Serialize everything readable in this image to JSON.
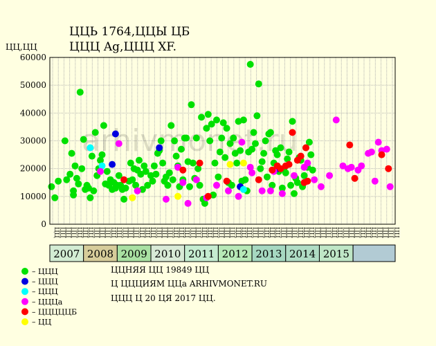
{
  "header": {
    "title": "ЦЦЬ 1764,ЦЦЫ ЦБ",
    "subtitle": "ЦЦЦ Ag,ЦЦЦ XF.",
    "ylabel": "ЦЦ,ЦЦ"
  },
  "watermark": "arhivmonet.ru",
  "legend": [
    {
      "label": "– ЦЦЦ",
      "color": "#00e000"
    },
    {
      "label": "– ЦЦЦ",
      "color": "#0000e0"
    },
    {
      "label": "– ЦЦЦ",
      "color": "#00ffff"
    },
    {
      "label": "– ЦЦЦа",
      "color": "#ff00ff"
    },
    {
      "label": "– ЦЦЦЦЦБ",
      "color": "#ff0000"
    },
    {
      "label": "– ЦЦ",
      "color": "#ffff00"
    }
  ],
  "notes": [
    "ЦЦНЯЯ ЦЦ 19849 ЦЦ",
    "Ц ЦЦЦИЯМ ЦЦа ARHIVMONET.RU",
    "ЦЦЦ Ц 20 ЦЯ 2017 ЦЦ."
  ],
  "chart_data": {
    "type": "scatter",
    "title": "ЦЦЬ 1764,ЦЦЫ ЦБ",
    "ylabel": "ЦЦ,ЦЦ",
    "ylim": [
      0,
      60000
    ],
    "yticks": [
      0,
      10000,
      20000,
      30000,
      40000,
      50000,
      60000
    ],
    "grid": true,
    "xlim": [
      2006.0,
      2016.25
    ],
    "years": [
      {
        "label": "2007",
        "start": 2006.0,
        "end": 2007.0,
        "color": "#d3ecd3"
      },
      {
        "label": "2008",
        "start": 2007.0,
        "end": 2008.0,
        "color": "#d6cc9a"
      },
      {
        "label": "2009",
        "start": 2008.0,
        "end": 2009.0,
        "color": "#a9e0a2"
      },
      {
        "label": "2010",
        "start": 2009.0,
        "end": 2010.0,
        "color": "#d8ead6"
      },
      {
        "label": "2011",
        "start": 2010.0,
        "end": 2011.0,
        "color": "#c5ecd0"
      },
      {
        "label": "2012",
        "start": 2011.0,
        "end": 2012.0,
        "color": "#b7e8b7"
      },
      {
        "label": "2013",
        "start": 2012.0,
        "end": 2013.0,
        "color": "#a6d8c1"
      },
      {
        "label": "2014",
        "start": 2013.0,
        "end": 2014.0,
        "color": "#afdcc4"
      },
      {
        "label": "2015",
        "start": 2014.0,
        "end": 2015.0,
        "color": "#bfe6c6"
      },
      {
        "label": "",
        "start": 2015.0,
        "end": 2016.25,
        "color": "#b2cbd4"
      }
    ],
    "xtick_labels": [
      "ЦЦ",
      "ЦЦ",
      "ЦЦ",
      "ЦЦ",
      "ЦЦ",
      "ЦЦ",
      "ЦЦ",
      "ЦЦ",
      "ЦЦ",
      "ЦЦ",
      "ЦЦ",
      "ЦЦ",
      "ЦЦ",
      "ЦЦ",
      "ЦЦ",
      "ЦЦ",
      "ЦЦ",
      "ЦЦ",
      "ЦЦ",
      "ЦЦ",
      "ЦЦ",
      "ЦЦ",
      "ЦЦ",
      "ЦЦ",
      "ЦЦ",
      "ЦЦ",
      "ЦЦ",
      "ЦЦ",
      "ЦЦ",
      "ЦЦ",
      "ЦЦ",
      "ЦЦ",
      "ЦЦ",
      "ЦЦ",
      "ЦЦ",
      "ЦЦ",
      "ЦЦ",
      "ЦЦ",
      "ЦЦ",
      "ЦЦ",
      "ЦЦ",
      "ЦЦ",
      "ЦЦ",
      "ЦЦ",
      "ЦЦ",
      "ЦЦ",
      "ЦЦ",
      "ЦЦ",
      "ЦЦ",
      "ЦЦ",
      "ЦЦ",
      "ЦЦ",
      "ЦЦ",
      "ЦЦ",
      "ЦЦ",
      "ЦЦ",
      "ЦЦ",
      "ЦЦ",
      "ЦЦ",
      "ЦЦ",
      "ЦЦ"
    ],
    "series": [
      {
        "name": "– ЦЦЦ",
        "color": "#00e000",
        "points": [
          [
            2006.05,
            13500
          ],
          [
            2006.15,
            9500
          ],
          [
            2006.25,
            15500
          ],
          [
            2006.45,
            30000
          ],
          [
            2006.5,
            16000
          ],
          [
            2006.6,
            18000
          ],
          [
            2006.65,
            25500
          ],
          [
            2006.7,
            12000
          ],
          [
            2006.7,
            10500
          ],
          [
            2006.75,
            21000
          ],
          [
            2006.8,
            16500
          ],
          [
            2006.85,
            14500
          ],
          [
            2006.9,
            47500
          ],
          [
            2006.95,
            20000
          ],
          [
            2007.0,
            30500
          ],
          [
            2007.05,
            12500
          ],
          [
            2007.1,
            14000
          ],
          [
            2007.15,
            13000
          ],
          [
            2007.2,
            9500
          ],
          [
            2007.25,
            24500
          ],
          [
            2007.3,
            12000
          ],
          [
            2007.35,
            33000
          ],
          [
            2007.4,
            17500
          ],
          [
            2007.45,
            20000
          ],
          [
            2007.5,
            23000
          ],
          [
            2007.55,
            25000
          ],
          [
            2007.6,
            35500
          ],
          [
            2007.65,
            14500
          ],
          [
            2007.7,
            19000
          ],
          [
            2007.75,
            14000
          ],
          [
            2007.8,
            16000
          ],
          [
            2007.85,
            12500
          ],
          [
            2007.9,
            15000
          ],
          [
            2007.95,
            13000
          ],
          [
            2008.0,
            14000
          ],
          [
            2008.05,
            17500
          ],
          [
            2008.1,
            14000
          ],
          [
            2008.15,
            12500
          ],
          [
            2008.2,
            9000
          ],
          [
            2008.25,
            13000
          ],
          [
            2008.35,
            15500
          ],
          [
            2008.4,
            22000
          ],
          [
            2008.45,
            16000
          ],
          [
            2008.5,
            20000
          ],
          [
            2008.55,
            14000
          ],
          [
            2008.6,
            19500
          ],
          [
            2008.65,
            23000
          ],
          [
            2008.7,
            18000
          ],
          [
            2008.75,
            12500
          ],
          [
            2008.8,
            21000
          ],
          [
            2008.85,
            19000
          ],
          [
            2008.9,
            14000
          ],
          [
            2009.0,
            17500
          ],
          [
            2009.05,
            15500
          ],
          [
            2009.1,
            21000
          ],
          [
            2009.15,
            18000
          ],
          [
            2009.2,
            25500
          ],
          [
            2009.25,
            26500
          ],
          [
            2009.3,
            30000
          ],
          [
            2009.35,
            22000
          ],
          [
            2009.4,
            15500
          ],
          [
            2009.45,
            17000
          ],
          [
            2009.5,
            14000
          ],
          [
            2009.55,
            18500
          ],
          [
            2009.6,
            35500
          ],
          [
            2009.65,
            16000
          ],
          [
            2009.7,
            30000
          ],
          [
            2009.75,
            24500
          ],
          [
            2009.8,
            21000
          ],
          [
            2009.85,
            13500
          ],
          [
            2009.9,
            27000
          ],
          [
            2009.95,
            16000
          ],
          [
            2010.0,
            31000
          ],
          [
            2010.05,
            31000
          ],
          [
            2010.1,
            22500
          ],
          [
            2010.15,
            13500
          ],
          [
            2010.2,
            43000
          ],
          [
            2010.25,
            22000
          ],
          [
            2010.3,
            16500
          ],
          [
            2010.35,
            31000
          ],
          [
            2010.4,
            20000
          ],
          [
            2010.45,
            14000
          ],
          [
            2010.5,
            38500
          ],
          [
            2010.55,
            9000
          ],
          [
            2010.6,
            7500
          ],
          [
            2010.65,
            34500
          ],
          [
            2010.7,
            39500
          ],
          [
            2010.75,
            30000
          ],
          [
            2010.8,
            36000
          ],
          [
            2010.85,
            10500
          ],
          [
            2010.9,
            22000
          ],
          [
            2010.95,
            37500
          ],
          [
            2011.0,
            17000
          ],
          [
            2011.05,
            26000
          ],
          [
            2011.1,
            31000
          ],
          [
            2011.15,
            36500
          ],
          [
            2011.2,
            24000
          ],
          [
            2011.25,
            34500
          ],
          [
            2011.3,
            15000
          ],
          [
            2011.35,
            29000
          ],
          [
            2011.4,
            14000
          ],
          [
            2011.45,
            31000
          ],
          [
            2011.5,
            25500
          ],
          [
            2011.55,
            22000
          ],
          [
            2011.6,
            37000
          ],
          [
            2011.65,
            26500
          ],
          [
            2011.7,
            15500
          ],
          [
            2011.75,
            37500
          ],
          [
            2011.8,
            16000
          ],
          [
            2011.85,
            12000
          ],
          [
            2011.9,
            26000
          ],
          [
            2011.95,
            57500
          ],
          [
            2012.0,
            27000
          ],
          [
            2012.05,
            33000
          ],
          [
            2012.1,
            29000
          ],
          [
            2012.15,
            39000
          ],
          [
            2012.2,
            50500
          ],
          [
            2012.25,
            20000
          ],
          [
            2012.3,
            22500
          ],
          [
            2012.35,
            25500
          ],
          [
            2012.4,
            30000
          ],
          [
            2012.45,
            17000
          ],
          [
            2012.5,
            32500
          ],
          [
            2012.55,
            33000
          ],
          [
            2012.6,
            14000
          ],
          [
            2012.65,
            22000
          ],
          [
            2012.7,
            26500
          ],
          [
            2012.75,
            25000
          ],
          [
            2012.8,
            19000
          ],
          [
            2012.85,
            27500
          ],
          [
            2012.9,
            13000
          ],
          [
            2012.95,
            20000
          ],
          [
            2013.0,
            18500
          ],
          [
            2013.05,
            23500
          ],
          [
            2013.1,
            26000
          ],
          [
            2013.15,
            14000
          ],
          [
            2013.2,
            37000
          ],
          [
            2013.25,
            11000
          ],
          [
            2013.3,
            16500
          ],
          [
            2013.35,
            15000
          ],
          [
            2013.4,
            24000
          ],
          [
            2013.45,
            23000
          ],
          [
            2013.5,
            13500
          ],
          [
            2013.55,
            17500
          ],
          [
            2013.6,
            27500
          ],
          [
            2013.65,
            20500
          ],
          [
            2013.7,
            29500
          ],
          [
            2013.75,
            25000
          ],
          [
            2013.8,
            19500
          ]
        ]
      },
      {
        "name": "– ЦЦЦ",
        "color": "#0000e0",
        "points": [
          [
            2007.85,
            21500
          ],
          [
            2007.95,
            32500
          ],
          [
            2009.25,
            27500
          ],
          [
            2011.65,
            13500
          ],
          [
            2012.75,
            20000
          ]
        ]
      },
      {
        "name": "– ЦЦЦ",
        "color": "#00ffff",
        "points": [
          [
            2007.2,
            27500
          ],
          [
            2007.55,
            21000
          ],
          [
            2011.75,
            12500
          ]
        ]
      },
      {
        "name": "– ЦЦЦа",
        "color": "#ff00ff",
        "points": [
          [
            2007.5,
            19000
          ],
          [
            2008.05,
            29000
          ],
          [
            2008.6,
            12000
          ],
          [
            2009.45,
            9000
          ],
          [
            2009.8,
            20500
          ],
          [
            2009.95,
            15000
          ],
          [
            2010.1,
            7500
          ],
          [
            2010.35,
            16000
          ],
          [
            2010.65,
            9500
          ],
          [
            2010.95,
            14000
          ],
          [
            2011.3,
            12000
          ],
          [
            2011.6,
            10000
          ],
          [
            2011.7,
            29500
          ],
          [
            2011.95,
            20500
          ],
          [
            2012.0,
            18500
          ],
          [
            2012.3,
            12000
          ],
          [
            2012.55,
            12000
          ],
          [
            2012.65,
            19000
          ],
          [
            2012.9,
            11000
          ],
          [
            2013.25,
            17500
          ],
          [
            2013.55,
            20500
          ],
          [
            2013.65,
            22000
          ],
          [
            2013.85,
            16000
          ],
          [
            2014.05,
            13500
          ],
          [
            2014.3,
            17500
          ],
          [
            2014.5,
            37500
          ],
          [
            2014.7,
            21000
          ],
          [
            2014.85,
            20000
          ],
          [
            2014.95,
            20500
          ],
          [
            2015.15,
            19500
          ],
          [
            2015.25,
            21000
          ],
          [
            2015.45,
            25500
          ],
          [
            2015.55,
            26000
          ],
          [
            2015.65,
            15500
          ],
          [
            2015.75,
            29500
          ],
          [
            2015.85,
            26500
          ],
          [
            2016.0,
            27000
          ],
          [
            2016.1,
            13500
          ]
        ]
      },
      {
        "name": "– ЦЦЦЦЦБ",
        "color": "#ff0000",
        "points": [
          [
            2008.2,
            16000
          ],
          [
            2009.95,
            19500
          ],
          [
            2010.45,
            22000
          ],
          [
            2010.7,
            10000
          ],
          [
            2011.25,
            15500
          ],
          [
            2012.2,
            16000
          ],
          [
            2012.6,
            19500
          ],
          [
            2012.75,
            21000
          ],
          [
            2012.85,
            20000
          ],
          [
            2013.0,
            21000
          ],
          [
            2013.1,
            21500
          ],
          [
            2013.2,
            33000
          ],
          [
            2013.35,
            23000
          ],
          [
            2013.45,
            24500
          ],
          [
            2013.55,
            15000
          ],
          [
            2013.6,
            27500
          ],
          [
            2013.65,
            15500
          ],
          [
            2014.9,
            28500
          ],
          [
            2015.05,
            16500
          ],
          [
            2015.85,
            25000
          ],
          [
            2016.05,
            20000
          ]
        ]
      },
      {
        "name": "– ЦЦ",
        "color": "#ffff00",
        "points": [
          [
            2008.45,
            9500
          ],
          [
            2009.8,
            10000
          ],
          [
            2011.35,
            21500
          ],
          [
            2011.75,
            22000
          ]
        ]
      }
    ]
  }
}
